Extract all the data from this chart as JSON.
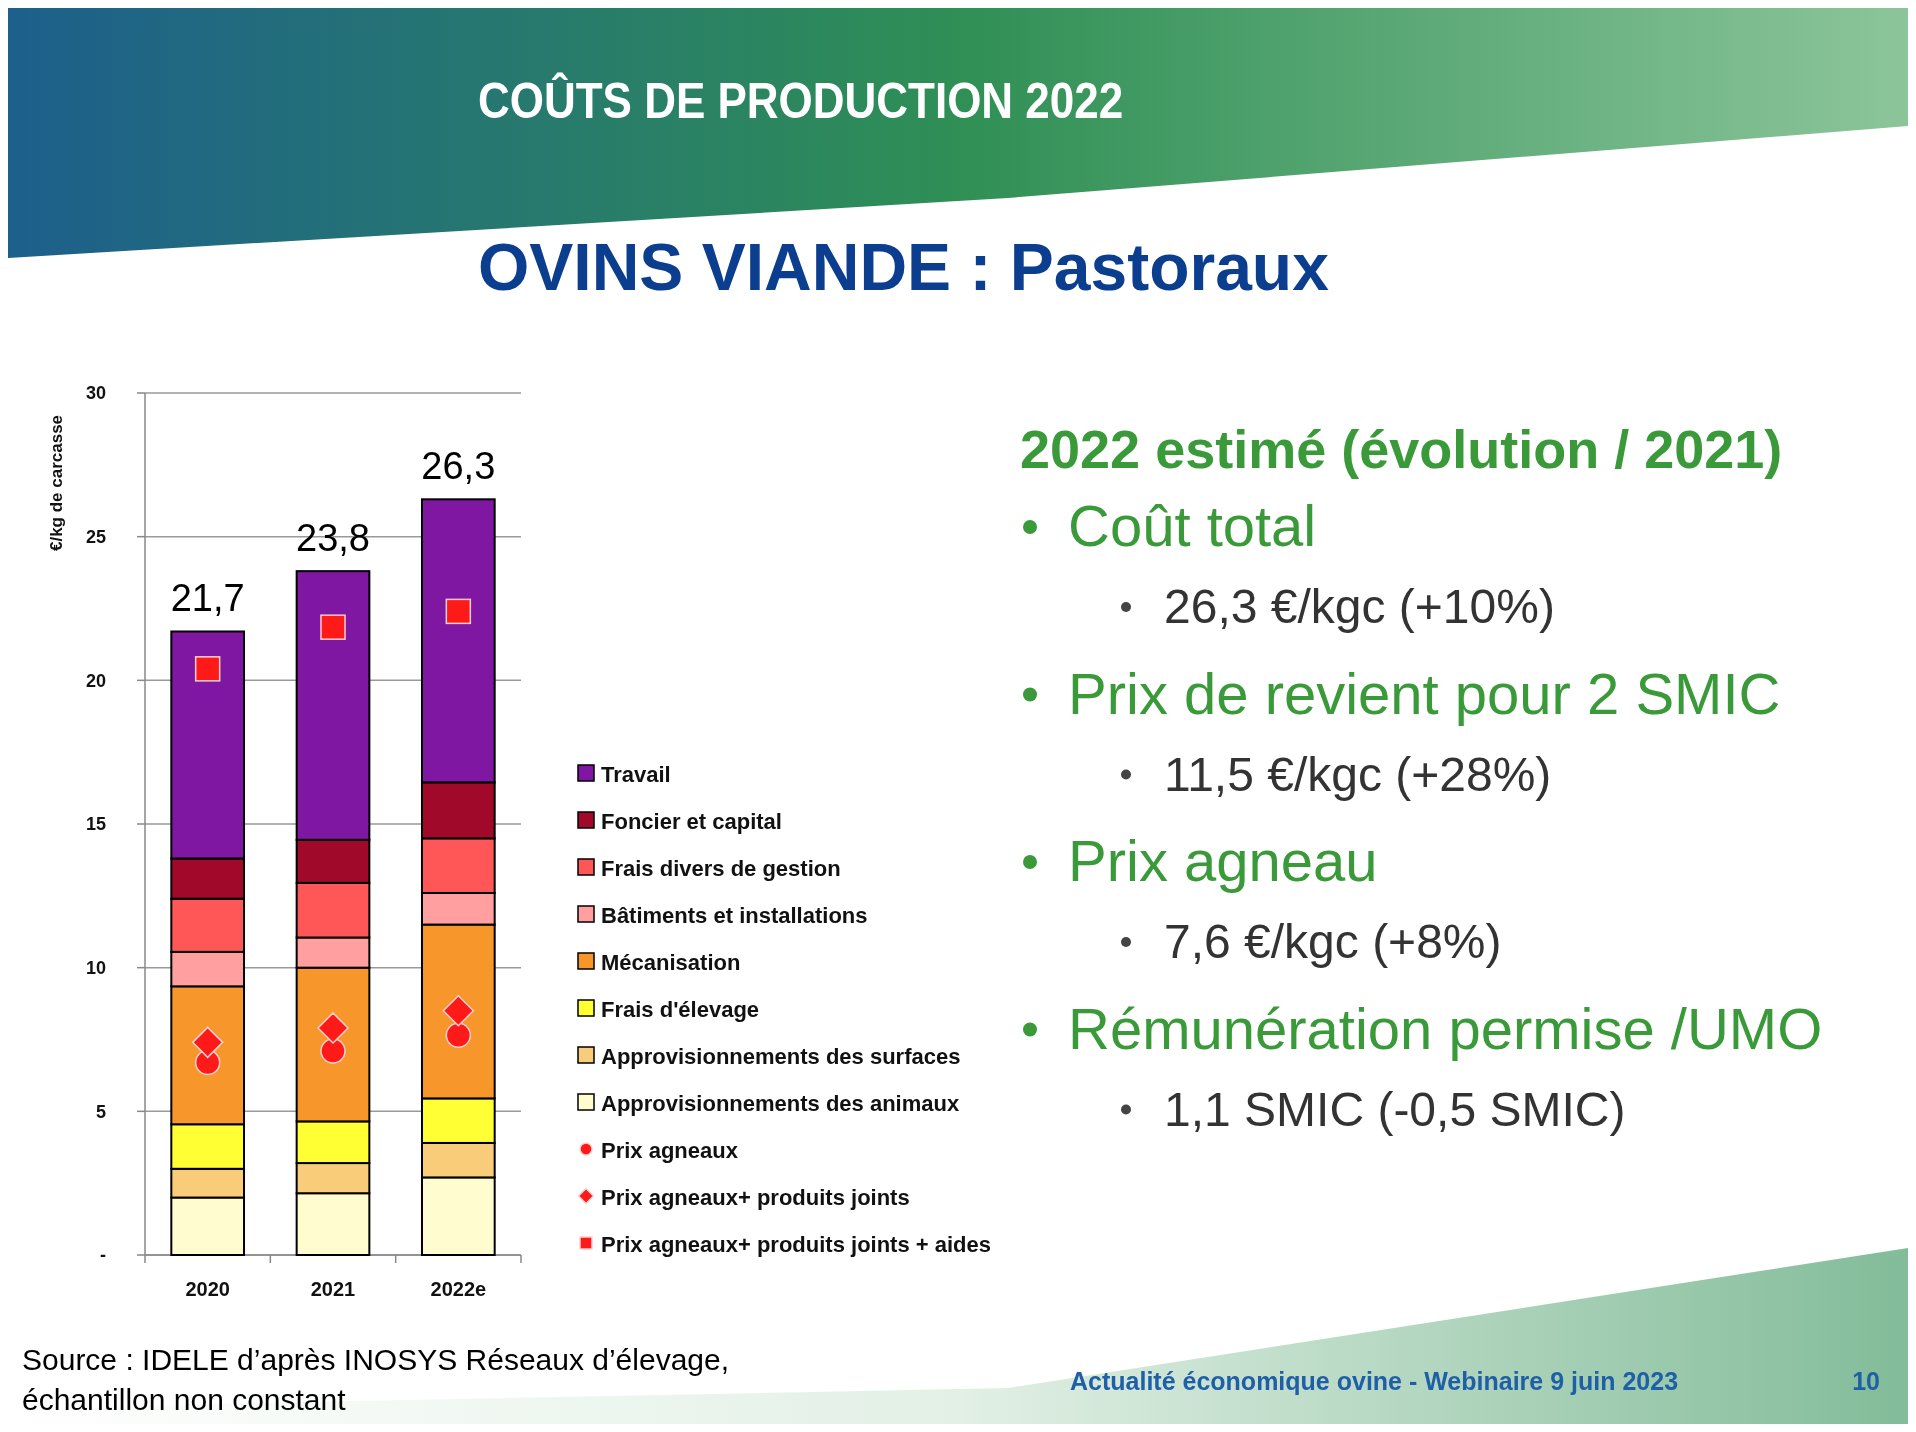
{
  "chart_data": [
    {
      "type": "bar",
      "title": "COÛTS DE PRODUCTION 2022",
      "subtitle": "OVINS VIANDE : Pastoraux",
      "ylabel": "€/kg de carcasse",
      "categories": [
        "2020",
        "2021",
        "2022e"
      ],
      "stacked": true,
      "legend": "right",
      "grid": "y",
      "ylim": [
        0,
        30
      ],
      "yticks": [
        {
          "value": 0,
          "label": "-"
        },
        5,
        10,
        15,
        20,
        25,
        30
      ],
      "totals": [
        "21,7",
        "23,8",
        "26,3"
      ],
      "series": [
        {
          "name": "Approvisionnements des animaux",
          "color": "#fffdd0",
          "values": [
            2.0,
            2.15,
            2.7
          ]
        },
        {
          "name": "Approvisionnements des surfaces",
          "color": "#f8cc78",
          "values": [
            1.0,
            1.05,
            1.2
          ]
        },
        {
          "name": "Frais d'élevage",
          "color": "#ffff33",
          "values": [
            1.55,
            1.45,
            1.55
          ]
        },
        {
          "name": "Mécanisation",
          "color": "#f7962a",
          "values": [
            4.8,
            5.35,
            6.05
          ]
        },
        {
          "name": "Bâtiments et installations",
          "color": "#ff9f9f",
          "values": [
            1.2,
            1.05,
            1.1
          ]
        },
        {
          "name": "Frais divers de gestion",
          "color": "#ff5757",
          "values": [
            1.85,
            1.9,
            1.9
          ]
        },
        {
          "name": "Foncier et capital",
          "color": "#a0092a",
          "values": [
            1.4,
            1.5,
            1.95
          ]
        },
        {
          "name": "Travail",
          "color": "#7f17a3",
          "values": [
            7.9,
            9.35,
            9.85
          ]
        },
        {
          "name": "Prix agneaux",
          "type": "scatter",
          "marker": "circle",
          "color": "#ff1a1a",
          "values": [
            6.7,
            7.1,
            7.65
          ]
        },
        {
          "name": "Prix agneaux+ produits joints",
          "type": "scatter",
          "marker": "diamond",
          "color": "#ff1a1a",
          "values": [
            7.4,
            7.9,
            8.5
          ]
        },
        {
          "name": "Prix agneaux+ produits joints + aides",
          "type": "scatter",
          "marker": "square",
          "color": "#ff1a1a",
          "values": [
            20.4,
            21.85,
            22.4
          ]
        }
      ],
      "annotations": [
        "Source : IDELE d’après INOSYS Réseaux d’élevage, échantillon non constant",
        "Actualité économique ovine - Webinaire 9 juin 2023",
        "10"
      ]
    },
    {
      "type": "other",
      "title": "2022 estimé (évolution / 2021)",
      "annotations": [
        "Coût total",
        "26,3 €/kgc (+10%)",
        "Prix de revient pour 2 SMIC",
        "11,5 €/kgc (+28%)",
        "Prix agneau",
        "7,6 €/kgc (+8%)",
        "Rémunération permise /UMO",
        "1,1 SMIC (-0,5 SMIC)"
      ]
    }
  ]
}
